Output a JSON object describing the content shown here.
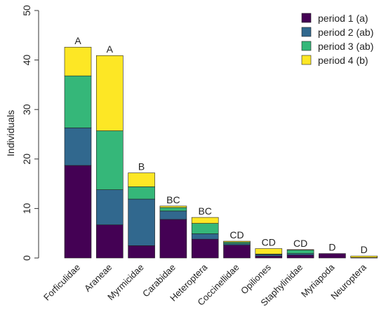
{
  "chart_data": {
    "type": "bar",
    "stacked": true,
    "title": "",
    "xlabel": "",
    "ylabel": "Individuals",
    "ylim": [
      0,
      50
    ],
    "yticks": [
      0,
      10,
      20,
      30,
      40,
      50
    ],
    "categories": [
      "Forficulidae",
      "Araneae",
      "Myrmicidae",
      "Carabidae",
      "Heteroptera",
      "Coccinellidae",
      "Opiliones",
      "Staphylinidae",
      "Myriapoda",
      "Neuroptera"
    ],
    "group_letters": [
      "A",
      "A",
      "B",
      "BC",
      "BC",
      "CD",
      "CD",
      "CD",
      "D",
      "D"
    ],
    "series": [
      {
        "name": "period 1 (a)",
        "color": "#440154",
        "values": [
          18.7,
          6.7,
          2.5,
          7.8,
          3.8,
          2.6,
          0.4,
          0.6,
          0.9,
          0.1
        ]
      },
      {
        "name": "period 2 (ab)",
        "color": "#31688E",
        "values": [
          7.6,
          7.1,
          9.4,
          1.7,
          1.1,
          0.3,
          0.3,
          0.3,
          0.0,
          0.0
        ]
      },
      {
        "name": "period 3 (ab)",
        "color": "#35B779",
        "values": [
          10.5,
          11.9,
          2.5,
          0.7,
          2.1,
          0.3,
          0.1,
          0.7,
          0.0,
          0.0
        ]
      },
      {
        "name": "period 4 (b)",
        "color": "#FDE725",
        "values": [
          5.8,
          15.2,
          2.8,
          0.3,
          1.2,
          0.2,
          1.1,
          0.1,
          0.0,
          0.3
        ]
      }
    ],
    "legend": "top-right",
    "grid": false
  }
}
